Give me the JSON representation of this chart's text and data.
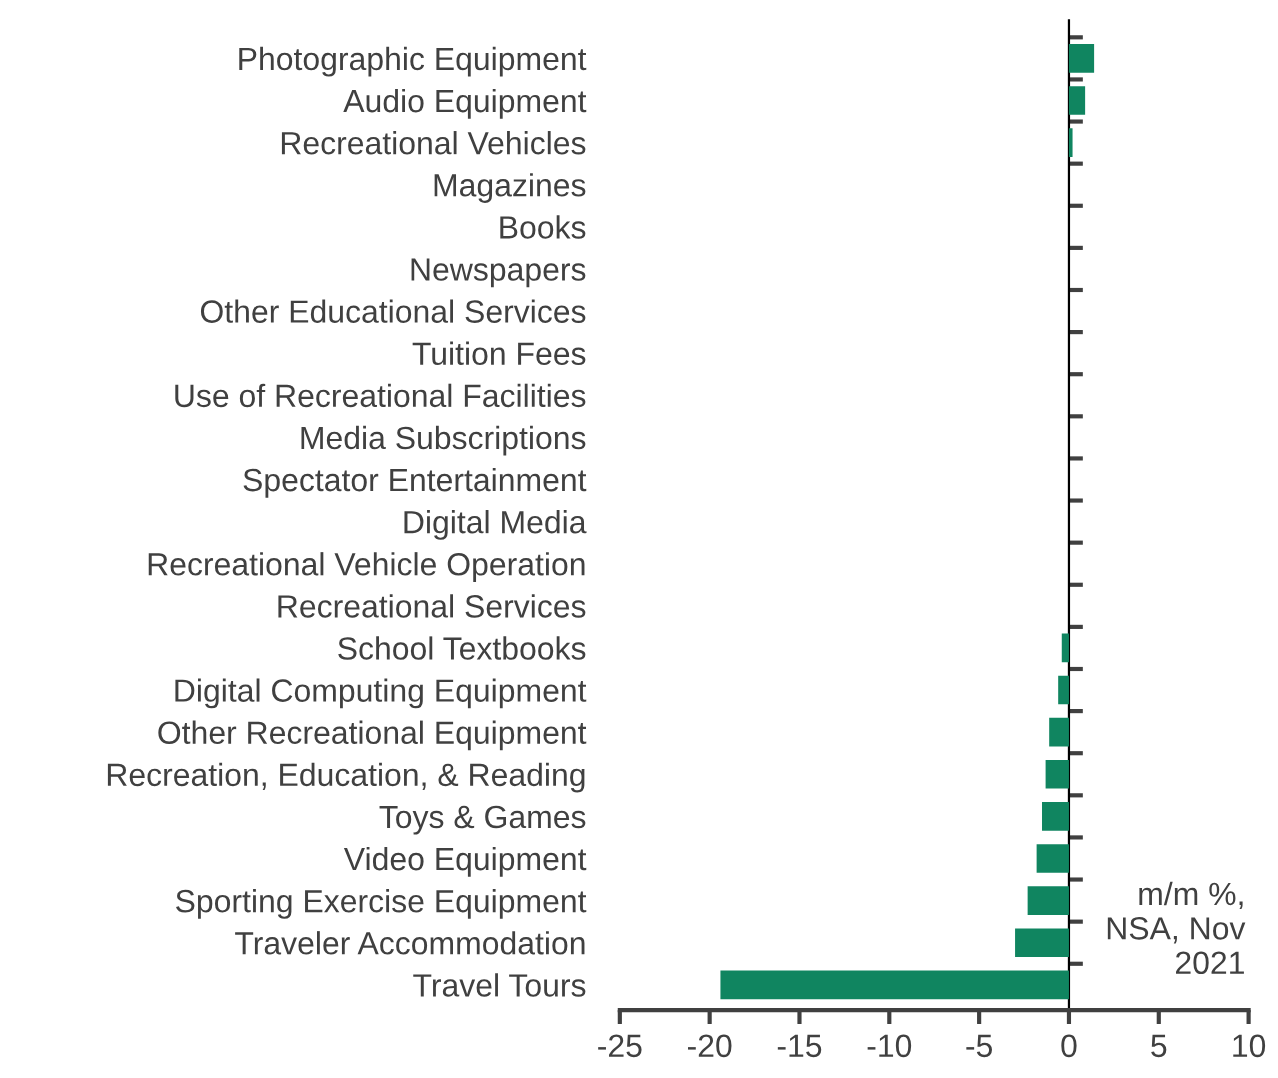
{
  "chart_data": {
    "type": "bar",
    "orientation": "horizontal",
    "categories": [
      "Photographic Equipment",
      "Audio Equipment",
      "Recreational Vehicles",
      "Magazines",
      "Books",
      "Newspapers",
      "Other Educational Services",
      "Tuition Fees",
      "Use of Recreational Facilities",
      "Media Subscriptions",
      "Spectator Entertainment",
      "Digital Media",
      "Recreational Vehicle Operation",
      "Recreational Services",
      "School Textbooks",
      "Digital Computing Equipment",
      "Other Recreational Equipment",
      "Recreation, Education, & Reading",
      "Toys & Games",
      "Video Equipment",
      "Sporting Exercise Equipment",
      "Traveler Accommodation",
      "Travel Tours"
    ],
    "values": [
      1.4,
      0.9,
      0.2,
      0,
      0,
      0,
      0,
      0,
      0,
      0,
      0,
      0,
      0,
      0,
      -0.4,
      -0.6,
      -1.1,
      -1.3,
      -1.5,
      -1.8,
      -2.3,
      -3.0,
      -19.4
    ],
    "color": "#108560",
    "xlim": [
      -25,
      10
    ],
    "xticks": [
      -25,
      -20,
      -15,
      -10,
      -5,
      0,
      5,
      10
    ],
    "annotations": [
      "m/m %,\nNSA, Nov\n2021"
    ],
    "legend": false
  }
}
